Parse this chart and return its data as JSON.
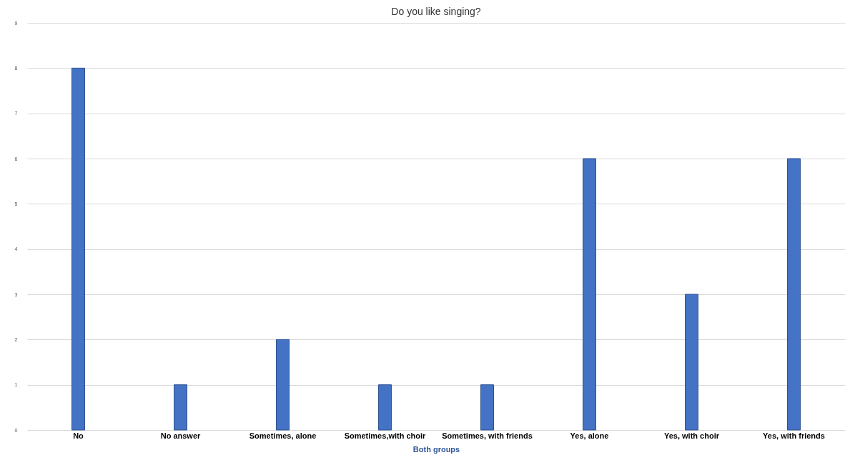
{
  "chart_data": {
    "type": "bar",
    "title": "Do you like singing?",
    "xlabel": "Both groups",
    "categories": [
      "No",
      "No answer",
      "Sometimes, alone",
      "Sometimes,with choir",
      "Sometimes, with friends",
      "Yes, alone",
      "Yes, with choir",
      "Yes, with friends"
    ],
    "values": [
      8,
      1,
      2,
      1,
      1,
      6,
      3,
      6
    ],
    "color": "#4472c4",
    "ylim": [
      0,
      9
    ],
    "yticks": [
      0,
      1,
      2,
      3,
      4,
      5,
      6,
      7,
      8,
      9
    ],
    "grid": "y"
  }
}
